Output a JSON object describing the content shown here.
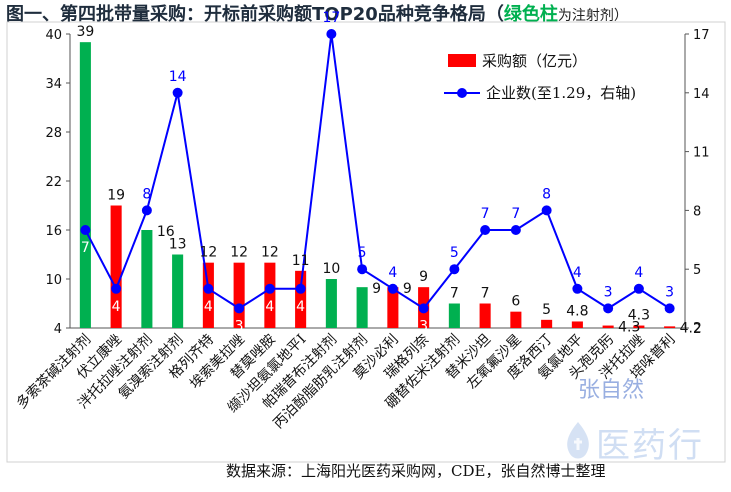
{
  "header": {
    "title_main": "图一、第四批带量采购：开标前采购额TOP20品种竞争格局（",
    "title_green": "绿色柱",
    "title_tail": "为注射剂）"
  },
  "footer": {
    "source": "数据来源：上海阳光医药采购网，CDE，张自然博士整理"
  },
  "watermark": {
    "author": "张自然",
    "brand": "医药行"
  },
  "colors": {
    "bar_injection": "#00b050",
    "bar_oral": "#ff0000",
    "line": "#0000ff",
    "line_label": "#0000ff",
    "bar_label": "#111111",
    "bar_label_inside": "#ffffff"
  },
  "chart_data": {
    "type": "bar+line",
    "categories": [
      "多索茶碱注射剂",
      "伏立康唑",
      "泮托拉唑注射剂",
      "氨溴索注射剂",
      "格列齐特",
      "埃索美拉唑",
      "替莫唑胺",
      "缬沙坦氨氯地平I",
      "帕瑞昔布注射剂",
      "丙泊酚脂肪乳注射剂",
      "莫沙必利",
      "瑞格列奈",
      "硼替佐米注射剂",
      "替米沙坦",
      "左氧氟沙星",
      "度洛西汀",
      "氨氯地平",
      "头孢克肟",
      "泮托拉唑",
      "培哚普利"
    ],
    "series": [
      {
        "name": "采购额（亿元）",
        "axis": "left",
        "values": [
          39,
          19,
          16,
          13,
          12,
          12,
          12,
          11,
          10,
          9,
          9,
          9,
          7,
          7,
          6,
          5,
          4.8,
          4.3,
          4.3,
          4.2
        ],
        "value_labels": [
          "39",
          "19",
          "16",
          "13",
          "12",
          "12",
          "12",
          "11",
          "10",
          "9",
          "9",
          "9",
          "7",
          "7",
          "6",
          "5",
          "4.8",
          "4.3",
          "4.3",
          "4.2"
        ],
        "injection": [
          true,
          false,
          true,
          true,
          false,
          false,
          false,
          false,
          true,
          true,
          false,
          false,
          true,
          false,
          false,
          false,
          false,
          false,
          false,
          false
        ]
      },
      {
        "name": "企业数(至1.29，右轴)",
        "axis": "right",
        "values": [
          7,
          4,
          8,
          14,
          4,
          3,
          4,
          4,
          17,
          5,
          4,
          3,
          5,
          7,
          7,
          8,
          4,
          3,
          4,
          3
        ],
        "value_labels": [
          "7",
          "4",
          "8",
          "14",
          "4",
          "3",
          "4",
          "4",
          "17",
          "5",
          "4",
          "3",
          "5",
          "7",
          "7",
          "8",
          "4",
          "3",
          "4",
          "3"
        ]
      }
    ],
    "y_left": {
      "min": 4,
      "max": 40,
      "ticks": [
        "4",
        "10",
        "16",
        "22",
        "28",
        "34",
        "40"
      ]
    },
    "y_right": {
      "min": 2,
      "max": 17,
      "ticks": [
        "2",
        "5",
        "8",
        "11",
        "14",
        "17"
      ]
    },
    "legend_position": "top-right",
    "grid": false
  }
}
